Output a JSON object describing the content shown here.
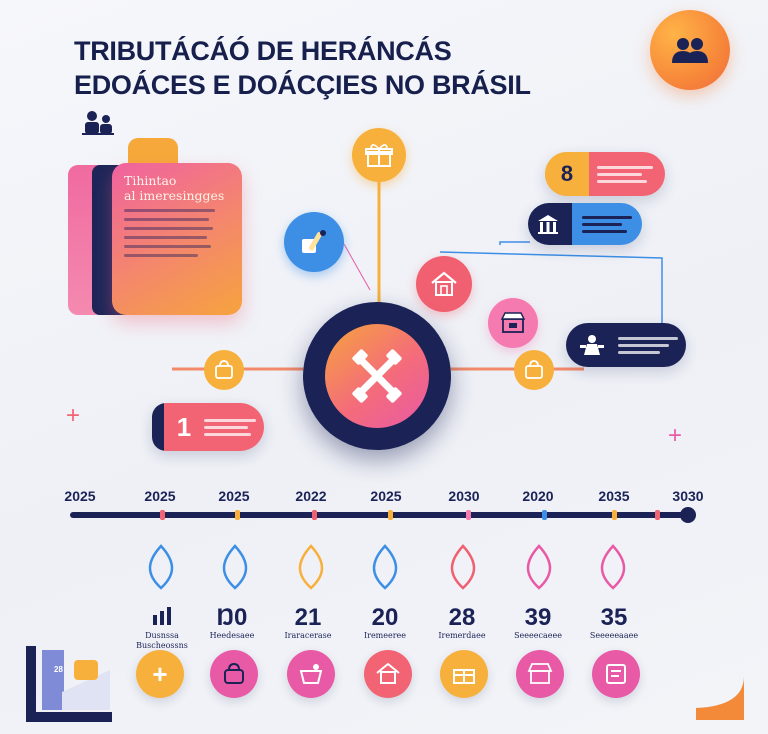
{
  "title_line1": "TRIBUTÁCÁÓ DE HERÁNCÁS",
  "title_line2": "EDOÁCES E DOÁCÇIES NO BRÁSIL",
  "card": {
    "title_line1": "Tihintao",
    "title_line2": "al imeresingges"
  },
  "pill_8_value": "8",
  "pill_1_value": "1",
  "timeline": {
    "labels": [
      "2025",
      "2025",
      "2025",
      "2022",
      "2025",
      "2030",
      "2020",
      "2035",
      "3030"
    ],
    "tick_colors": [
      "#f26474",
      "#f8b03c",
      "#f06070",
      "#f8b03c",
      "#f57ab0",
      "#3d8fe6",
      "#f8b03c",
      "#f26474"
    ]
  },
  "drop_colors": [
    "#3d8fe6",
    "#3d8fe6",
    "#f8b03c",
    "#3d8fe6",
    "#f06070",
    "#e95aa6",
    "#e95aa6"
  ],
  "bottom_values": [
    {
      "value": "",
      "sub1": "Dusnssa",
      "sub2": "Buscheossns"
    },
    {
      "value": "Ŋ0",
      "sub1": "Heedesaee",
      "sub2": ""
    },
    {
      "value": "21",
      "sub1": "Iraracerase",
      "sub2": ""
    },
    {
      "value": "20",
      "sub1": "Iremeeree",
      "sub2": ""
    },
    {
      "value": "28",
      "sub1": "Iremerdaee",
      "sub2": ""
    },
    {
      "value": "39",
      "sub1": "Seeeecaeee",
      "sub2": ""
    },
    {
      "value": "35",
      "sub1": "Seeeeeaaee",
      "sub2": ""
    }
  ],
  "corner_chart_label": "28",
  "colors": {
    "navy": "#1b2256",
    "orange": "#f8b03c",
    "pink": "#f26474",
    "magenta": "#e95aa6",
    "blue": "#3d8fe6"
  },
  "icons": [
    "users-icon",
    "people-icon",
    "gift-icon",
    "paint-icon",
    "house-icon",
    "store-icon",
    "bag-icon",
    "building-icon",
    "person-icon",
    "plus-icon",
    "tools-cross-icon"
  ]
}
